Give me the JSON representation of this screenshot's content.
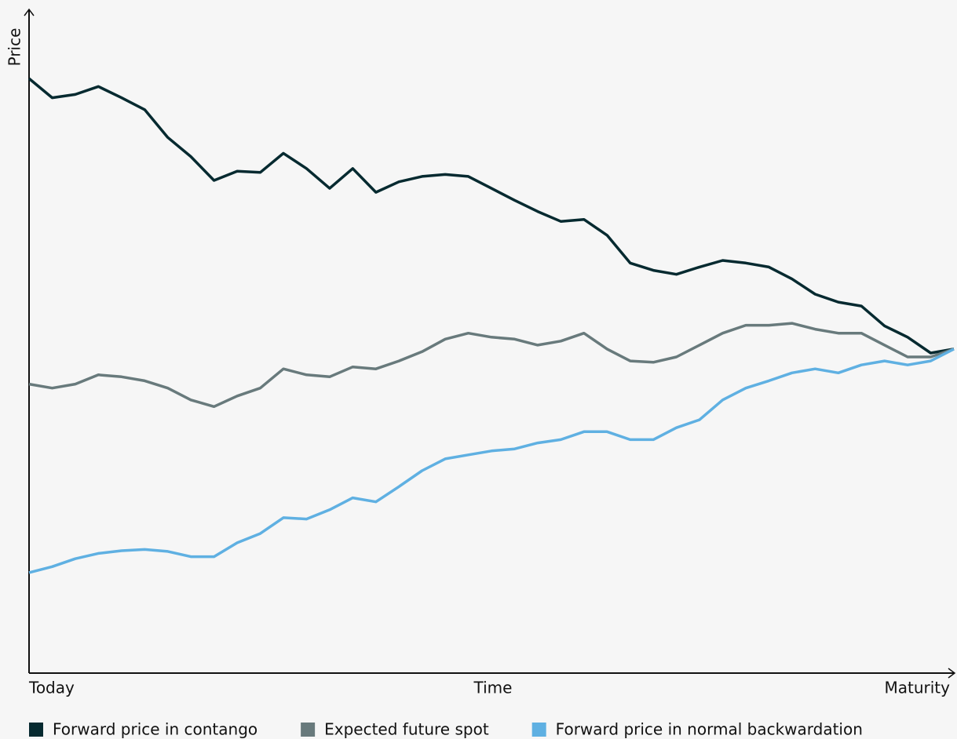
{
  "chart_data": {
    "type": "line",
    "x_label": "Time",
    "y_label": "Price",
    "x": [
      0,
      1,
      2,
      3,
      4,
      5,
      6,
      7,
      8,
      9,
      10,
      11,
      12,
      13,
      14,
      15,
      16,
      17,
      18,
      19,
      20,
      21,
      22,
      23,
      24,
      25,
      26,
      27,
      28,
      29,
      30,
      31,
      32,
      33,
      34,
      35,
      36,
      37,
      38,
      39,
      40
    ],
    "xlim": [
      0,
      40
    ],
    "xticks": [
      {
        "value": 0,
        "label": "Today"
      },
      {
        "value": 40,
        "label": "Maturity"
      }
    ],
    "ylim": [
      0,
      100
    ],
    "series": [
      {
        "name": "Forward price in contango",
        "color": "#062a30",
        "values": [
          89.9,
          87.0,
          87.5,
          88.7,
          87.0,
          85.2,
          81.0,
          78.1,
          74.5,
          75.9,
          75.7,
          78.6,
          76.3,
          73.3,
          76.3,
          72.7,
          74.3,
          75.1,
          75.4,
          75.1,
          73.3,
          71.5,
          69.8,
          68.3,
          68.6,
          66.2,
          62.0,
          60.9,
          60.3,
          61.4,
          62.4,
          62.0,
          61.4,
          59.6,
          57.3,
          56.1,
          55.5,
          52.5,
          50.8,
          48.4,
          49.0
        ]
      },
      {
        "name": "Expected future spot",
        "color": "#687a7c",
        "values": [
          43.7,
          43.1,
          43.7,
          45.1,
          44.8,
          44.2,
          43.1,
          41.3,
          40.3,
          41.9,
          43.1,
          46.0,
          45.1,
          44.8,
          46.3,
          46.0,
          47.2,
          48.6,
          50.5,
          51.4,
          50.8,
          50.5,
          49.6,
          50.2,
          51.4,
          49.0,
          47.2,
          47.0,
          47.8,
          49.6,
          51.4,
          52.6,
          52.6,
          52.9,
          52.0,
          51.4,
          51.4,
          49.6,
          47.8,
          47.8,
          49.0
        ]
      },
      {
        "name": "Forward price in normal backwardation",
        "color": "#5fb0e2",
        "values": [
          15.2,
          16.1,
          17.3,
          18.1,
          18.5,
          18.7,
          18.4,
          17.6,
          17.6,
          19.7,
          21.1,
          23.5,
          23.3,
          24.7,
          26.5,
          25.9,
          28.2,
          30.6,
          32.4,
          33.0,
          33.6,
          33.9,
          34.8,
          35.3,
          36.5,
          36.5,
          35.3,
          35.3,
          37.1,
          38.3,
          41.3,
          43.1,
          44.2,
          45.4,
          46.0,
          45.4,
          46.6,
          47.2,
          46.6,
          47.2,
          49.0
        ]
      }
    ],
    "legend": "bottom"
  }
}
